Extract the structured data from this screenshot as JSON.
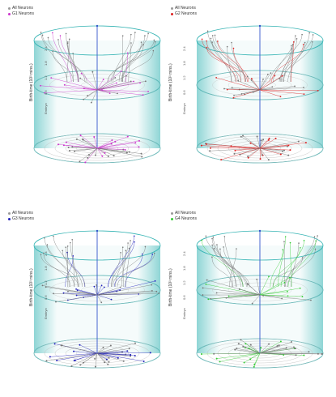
{
  "panels": [
    {
      "legend": {
        "all_label": "All Neurons",
        "group_label": "G1 Neurons"
      },
      "ylabel": "Birth-time (10³ mins.)",
      "ticks": [
        "2.4",
        "1.8",
        "1.2",
        "0.6",
        "Embryo"
      ],
      "accent": "#cc33cc"
    },
    {
      "legend": {
        "all_label": "All Neurons",
        "group_label": "G2 Neurons"
      },
      "ylabel": "Birth-time (10³ mins.)",
      "ticks": [
        "2.4",
        "1.8",
        "1.2",
        "0.6",
        "Embryo"
      ],
      "accent": "#dd2222"
    },
    {
      "legend": {
        "all_label": "All Neurons",
        "group_label": "G3 Neurons"
      },
      "ylabel": "Birth-time (10³ mins.)",
      "ticks": [
        "2.4",
        "1.8",
        "1.2",
        "0.6",
        "Embryo"
      ],
      "accent": "#2222bb"
    },
    {
      "legend": {
        "all_label": "All Neurons",
        "group_label": "G4 Neurons"
      },
      "ylabel": "Birth-time (10³ mins.)",
      "ticks": [
        "2.4",
        "1.8",
        "1.2",
        "0.6",
        "Embryo"
      ],
      "accent": "#33cc33"
    }
  ],
  "colors": {
    "cylinder": "#33b3b3",
    "tree": "#777777",
    "axis": "#3355cc",
    "grid": "#bbbbbb"
  }
}
